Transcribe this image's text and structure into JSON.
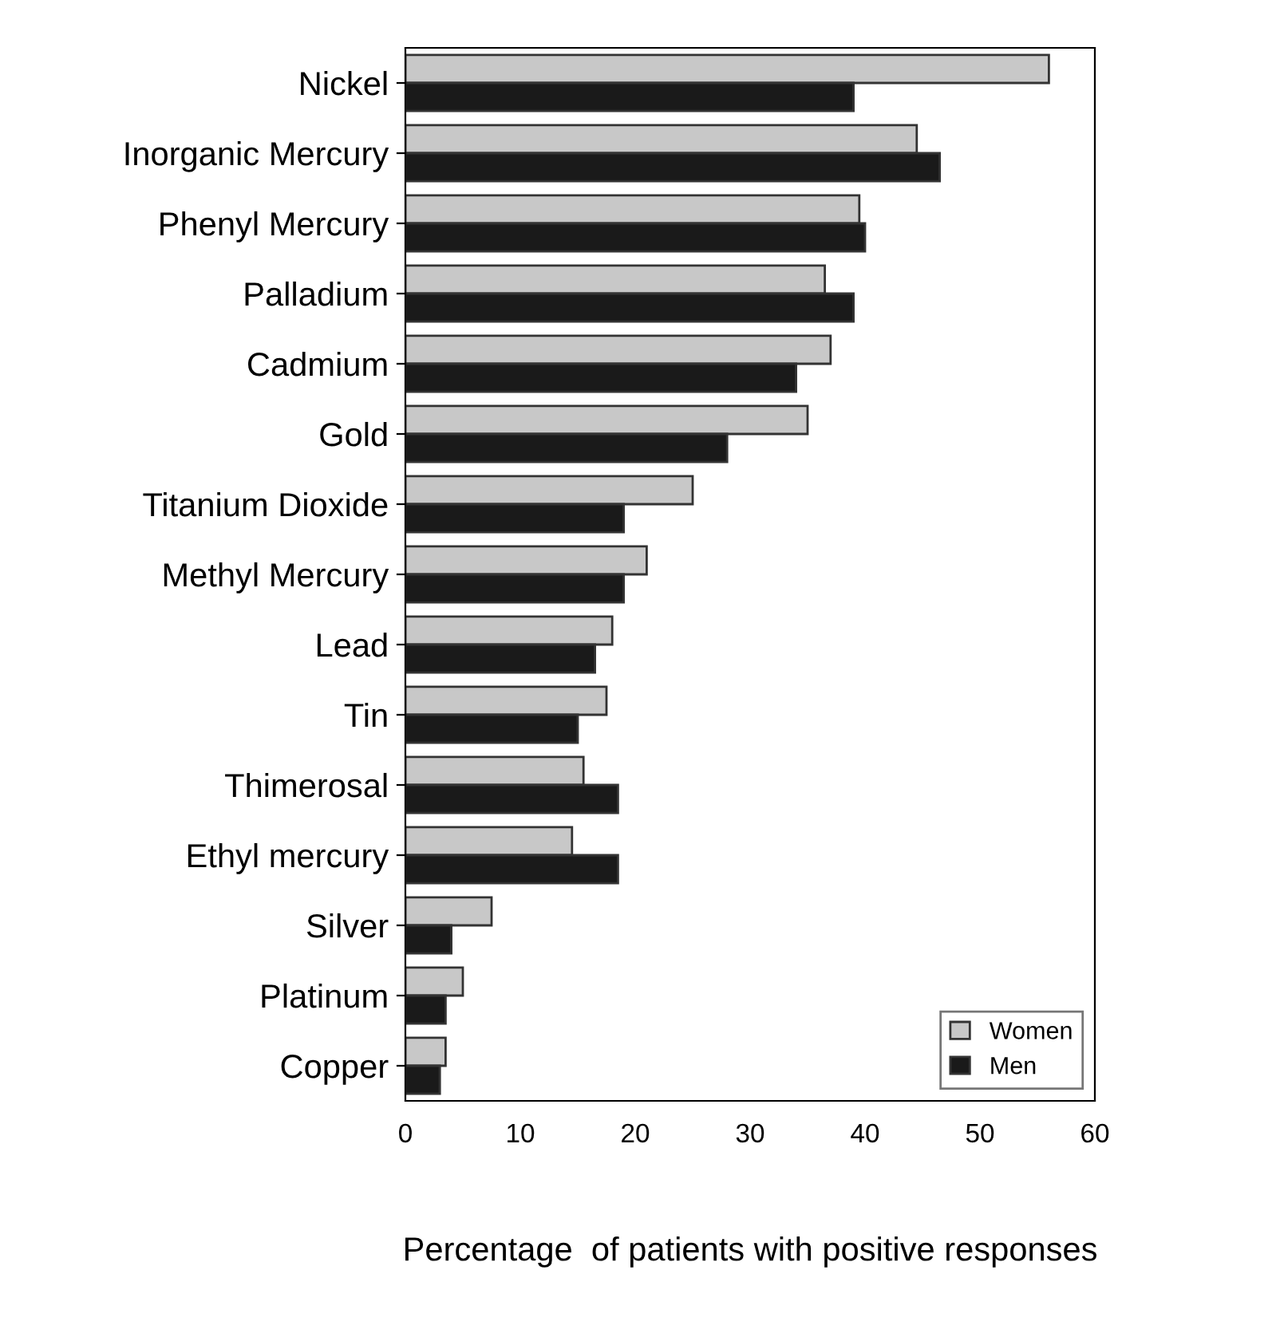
{
  "chart_data": {
    "type": "bar",
    "orientation": "horizontal",
    "xlabel": "Percentage  of patients with positive responses",
    "categories": [
      "Nickel",
      "Inorganic Mercury",
      "Phenyl Mercury",
      "Palladium",
      "Cadmium",
      "Gold",
      "Titanium Dioxide",
      "Methyl Mercury",
      "Lead",
      "Tin",
      "Thimerosal",
      "Ethyl mercury",
      "Silver",
      "Platinum",
      "Copper"
    ],
    "series": [
      {
        "name": "Women",
        "color": "#c8c8c8",
        "values": [
          56,
          44.5,
          39.5,
          36.5,
          37,
          35,
          25,
          21,
          18,
          17.5,
          15.5,
          14.5,
          7.5,
          5,
          3.5
        ]
      },
      {
        "name": "Men",
        "color": "#1a1a1a",
        "values": [
          39,
          46.5,
          40,
          39,
          34,
          28,
          19,
          19,
          16.5,
          15,
          18.5,
          18.5,
          4,
          3.5,
          3
        ]
      }
    ],
    "xlim": [
      0,
      60
    ],
    "xticks": [
      0,
      10,
      20,
      30,
      40,
      50,
      60
    ],
    "grid": false,
    "legend": "bottom right"
  }
}
